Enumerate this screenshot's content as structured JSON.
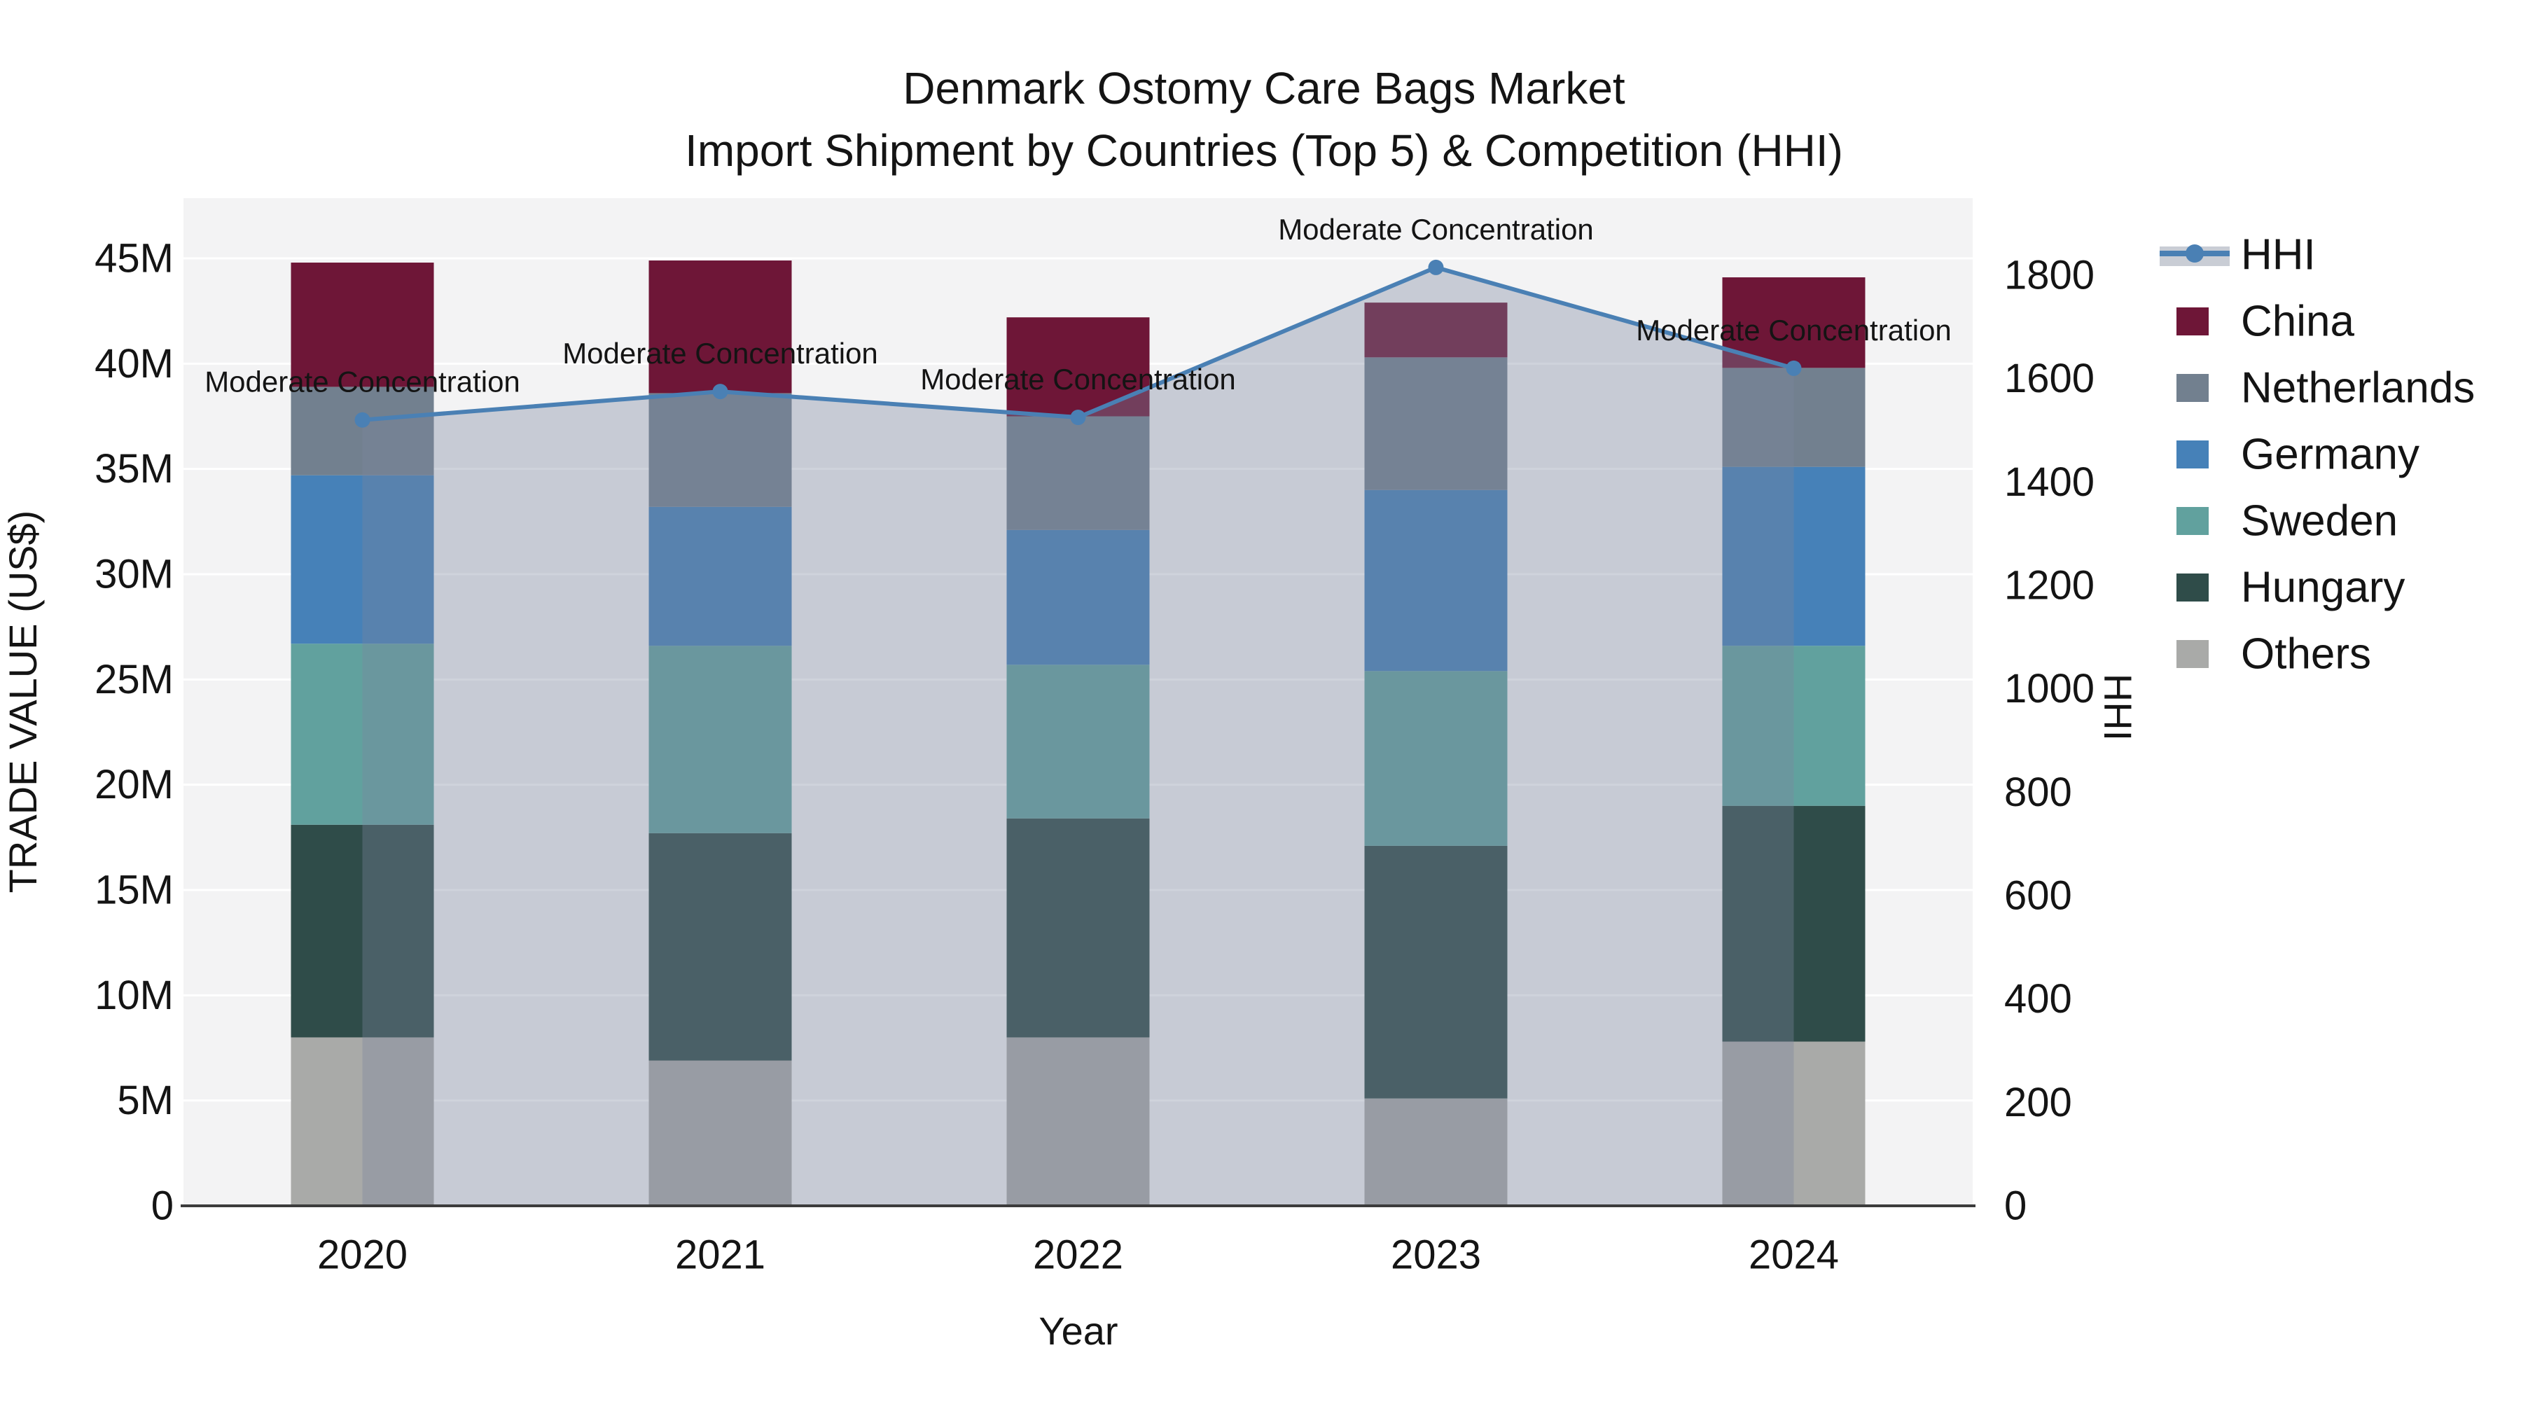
{
  "title": {
    "line1": "Denmark Ostomy Care Bags Market",
    "line2": "Import Shipment by Countries (Top 5) & Competition (HHI)"
  },
  "axes": {
    "left": {
      "title": "TRADE VALUE (US$)",
      "ticks": [
        {
          "value": 0,
          "label": "0"
        },
        {
          "value": 5,
          "label": "5M"
        },
        {
          "value": 10,
          "label": "10M"
        },
        {
          "value": 15,
          "label": "15M"
        },
        {
          "value": 20,
          "label": "20M"
        },
        {
          "value": 25,
          "label": "25M"
        },
        {
          "value": 30,
          "label": "30M"
        },
        {
          "value": 35,
          "label": "35M"
        },
        {
          "value": 40,
          "label": "40M"
        },
        {
          "value": 45,
          "label": "45M"
        }
      ]
    },
    "right": {
      "title": "HHI",
      "ticks": [
        {
          "value": 0,
          "label": "0"
        },
        {
          "value": 200,
          "label": "200"
        },
        {
          "value": 400,
          "label": "400"
        },
        {
          "value": 600,
          "label": "600"
        },
        {
          "value": 800,
          "label": "800"
        },
        {
          "value": 1000,
          "label": "1000"
        },
        {
          "value": 1200,
          "label": "1200"
        },
        {
          "value": 1400,
          "label": "1400"
        },
        {
          "value": 1600,
          "label": "1600"
        },
        {
          "value": 1800,
          "label": "1800"
        }
      ]
    },
    "x": {
      "title": "Year",
      "categories": [
        "2020",
        "2021",
        "2022",
        "2023",
        "2024"
      ]
    }
  },
  "legend": {
    "items": [
      {
        "label": "HHI",
        "kind": "line"
      },
      {
        "label": "China",
        "kind": "swatch",
        "color": "#6e1637"
      },
      {
        "label": "Netherlands",
        "kind": "swatch",
        "color": "#72808f"
      },
      {
        "label": "Germany",
        "kind": "swatch",
        "color": "#4681b8"
      },
      {
        "label": "Sweden",
        "kind": "swatch",
        "color": "#61a19e"
      },
      {
        "label": "Hungary",
        "kind": "swatch",
        "color": "#2f4c49"
      },
      {
        "label": "Others",
        "kind": "swatch",
        "color": "#a9aaa8"
      }
    ]
  },
  "chart_data": {
    "type": "combo stacked-bar + line",
    "categories": [
      "2020",
      "2021",
      "2022",
      "2023",
      "2024"
    ],
    "bar_unit": "million US$",
    "bar_stack_order_bottom_to_top": [
      "Others",
      "Hungary",
      "Sweden",
      "Germany",
      "Netherlands",
      "China"
    ],
    "series": [
      {
        "name": "Others",
        "color": "#a9aaa8",
        "values": [
          8.0,
          6.9,
          8.0,
          5.1,
          7.8
        ]
      },
      {
        "name": "Hungary",
        "color": "#2f4c49",
        "values": [
          10.1,
          10.8,
          10.4,
          12.0,
          11.2
        ]
      },
      {
        "name": "Sweden",
        "color": "#61a19e",
        "values": [
          8.6,
          8.9,
          7.3,
          8.3,
          7.6
        ]
      },
      {
        "name": "Germany",
        "color": "#4681b8",
        "values": [
          8.0,
          6.6,
          6.4,
          8.6,
          8.5
        ]
      },
      {
        "name": "Netherlands",
        "color": "#72808f",
        "values": [
          4.2,
          5.4,
          5.4,
          6.3,
          4.7
        ]
      },
      {
        "name": "China",
        "color": "#6e1637",
        "values": [
          5.9,
          6.3,
          4.7,
          2.6,
          4.3
        ]
      }
    ],
    "bar_totals": [
      44.8,
      44.9,
      42.2,
      42.9,
      44.1
    ],
    "line_series": {
      "name": "HHI",
      "axis": "right",
      "values": [
        1520,
        1575,
        1525,
        1815,
        1620
      ],
      "color": "#4a80b4",
      "area_fill": "rgba(123,134,157,0.36)",
      "annotations": [
        "Moderate Concentration",
        "Moderate Concentration",
        "Moderate Concentration",
        "Moderate Concentration",
        "Moderate Concentration"
      ]
    },
    "ylim_left": [
      0,
      47.9
    ],
    "ylim_right": [
      0,
      1800
    ],
    "grid": "horizontal white lines every 5M",
    "legend_position": "right outside",
    "title": "Denmark Ostomy Care Bags Market — Import Shipment by Countries (Top 5) & Competition (HHI)",
    "xlabel": "Year",
    "ylabel_left": "TRADE VALUE (US$)",
    "ylabel_right": "HHI"
  },
  "colors": {
    "plot_background": "#f3f3f4",
    "gridline": "#ffffff",
    "axis_line": "#3c3c3c",
    "text": "#141414",
    "hhi_line": "#4a80b4",
    "hhi_area": "rgba(123,134,157,0.36)",
    "legend_fill_swatch": "#c9cdd5"
  }
}
